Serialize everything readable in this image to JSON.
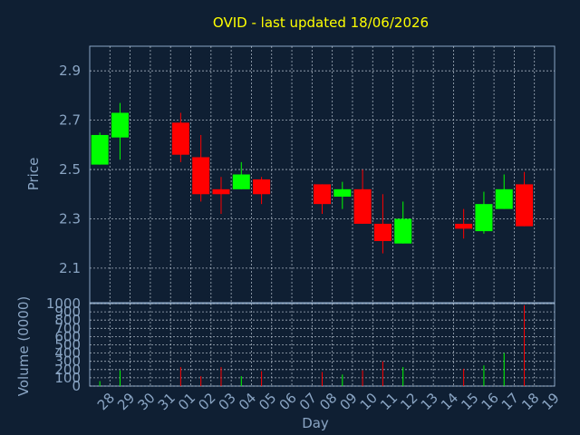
{
  "colors": {
    "background": "#0f1f33",
    "title": "#ffff00",
    "axis": "#8aa5c4",
    "up": "#00ff00",
    "down": "#ff0000",
    "grid": "#c8d4e0"
  },
  "chart_data": [
    {
      "type": "candlestick",
      "title": "OVID - last updated 18/06/2026",
      "ylabel": "Price",
      "ylim": [
        1.96,
        3.0
      ],
      "yticks": [
        "2.1",
        "2.3",
        "2.5",
        "2.7",
        "2.9"
      ],
      "grid": true,
      "x": [
        "28",
        "29",
        "30",
        "31",
        "01",
        "02",
        "03",
        "04",
        "05",
        "06",
        "07",
        "08",
        "09",
        "10",
        "11",
        "12",
        "13",
        "14",
        "15",
        "16",
        "17",
        "18",
        "19"
      ],
      "candles": [
        {
          "day": "28",
          "open": 2.52,
          "high": 2.65,
          "low": 2.52,
          "close": 2.64
        },
        {
          "day": "29",
          "open": 2.63,
          "high": 2.77,
          "low": 2.54,
          "close": 2.73
        },
        {
          "day": "01",
          "open": 2.69,
          "high": 2.73,
          "low": 2.53,
          "close": 2.56
        },
        {
          "day": "02",
          "open": 2.55,
          "high": 2.64,
          "low": 2.37,
          "close": 2.4
        },
        {
          "day": "03",
          "open": 2.42,
          "high": 2.47,
          "low": 2.32,
          "close": 2.4
        },
        {
          "day": "04",
          "open": 2.42,
          "high": 2.53,
          "low": 2.42,
          "close": 2.48
        },
        {
          "day": "05",
          "open": 2.46,
          "high": 2.47,
          "low": 2.36,
          "close": 2.4
        },
        {
          "day": "08",
          "open": 2.44,
          "high": 2.44,
          "low": 2.32,
          "close": 2.36
        },
        {
          "day": "09",
          "open": 2.39,
          "high": 2.45,
          "low": 2.34,
          "close": 2.42
        },
        {
          "day": "10",
          "open": 2.42,
          "high": 2.5,
          "low": 2.28,
          "close": 2.28
        },
        {
          "day": "11",
          "open": 2.28,
          "high": 2.4,
          "low": 2.16,
          "close": 2.21
        },
        {
          "day": "12",
          "open": 2.2,
          "high": 2.37,
          "low": 2.2,
          "close": 2.3
        },
        {
          "day": "15",
          "open": 2.28,
          "high": 2.34,
          "low": 2.22,
          "close": 2.26
        },
        {
          "day": "16",
          "open": 2.25,
          "high": 2.41,
          "low": 2.24,
          "close": 2.36
        },
        {
          "day": "17",
          "open": 2.34,
          "high": 2.48,
          "low": 2.34,
          "close": 2.42
        },
        {
          "day": "18",
          "open": 2.44,
          "high": 2.49,
          "low": 2.27,
          "close": 2.27
        }
      ]
    },
    {
      "type": "bar",
      "ylabel": "Volume (0000)",
      "xlabel": "Day",
      "ylim": [
        0,
        1000
      ],
      "yticks": [
        "0",
        "100",
        "200",
        "300",
        "400",
        "500",
        "600",
        "700",
        "800",
        "900",
        "1000"
      ],
      "grid": true,
      "categories": [
        "28",
        "29",
        "30",
        "31",
        "01",
        "02",
        "03",
        "04",
        "05",
        "06",
        "07",
        "08",
        "09",
        "10",
        "11",
        "12",
        "13",
        "14",
        "15",
        "16",
        "17",
        "18",
        "19"
      ],
      "bars": [
        {
          "day": "28",
          "value": 60,
          "direction": "up"
        },
        {
          "day": "29",
          "value": 190,
          "direction": "up"
        },
        {
          "day": "01",
          "value": 230,
          "direction": "down"
        },
        {
          "day": "02",
          "value": 120,
          "direction": "down"
        },
        {
          "day": "03",
          "value": 230,
          "direction": "down"
        },
        {
          "day": "04",
          "value": 120,
          "direction": "up"
        },
        {
          "day": "05",
          "value": 180,
          "direction": "down"
        },
        {
          "day": "08",
          "value": 170,
          "direction": "down"
        },
        {
          "day": "09",
          "value": 140,
          "direction": "up"
        },
        {
          "day": "10",
          "value": 190,
          "direction": "down"
        },
        {
          "day": "11",
          "value": 300,
          "direction": "down"
        },
        {
          "day": "12",
          "value": 230,
          "direction": "up"
        },
        {
          "day": "15",
          "value": 210,
          "direction": "down"
        },
        {
          "day": "16",
          "value": 250,
          "direction": "up"
        },
        {
          "day": "17",
          "value": 400,
          "direction": "up"
        },
        {
          "day": "18",
          "value": 980,
          "direction": "down"
        }
      ]
    }
  ]
}
